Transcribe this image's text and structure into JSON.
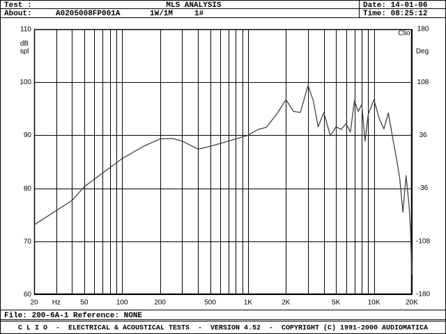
{
  "header": {
    "test_label": "Test :",
    "title": "MLS ANALYSIS",
    "date": "Date: 14-01-06",
    "about_label": "About:",
    "about_id": "A0205008FP001A",
    "about_level": "1W/1M",
    "about_num": "1#",
    "time": "Time: 08:25:12"
  },
  "chart_data": {
    "type": "line",
    "logo": "Clio",
    "y_label_lines": [
      "dB",
      "spl"
    ],
    "y2_label": "Deg",
    "x_unit_label": {
      "text": "Hz",
      "value": 30
    },
    "x": [
      20,
      40,
      50,
      100,
      150,
      200,
      250,
      300,
      400,
      500,
      700,
      1000,
      1200,
      1400,
      1700,
      2000,
      2300,
      2600,
      3000,
      3300,
      3600,
      4000,
      4500,
      5000,
      5500,
      6000,
      6500,
      7000,
      7500,
      8000,
      8500,
      9000,
      10000,
      11000,
      12000,
      13000,
      14000,
      15000,
      16000,
      17000,
      18000,
      19000,
      19500,
      20000
    ],
    "series": [
      {
        "color": "#404040",
        "values": [
          73.1,
          77.7,
          80.3,
          85.6,
          88,
          89.3,
          89.4,
          88.9,
          87.4,
          87.9,
          88.9,
          90,
          91.1,
          91.5,
          94.1,
          96.7,
          94.5,
          94.3,
          99.4,
          96.5,
          91.6,
          94.3,
          89.9,
          91.6,
          91.1,
          92.2,
          90.6,
          96.5,
          94.5,
          95.8,
          88.9,
          93.9,
          96.7,
          93.2,
          91.2,
          94.2,
          89.9,
          86,
          82,
          75.5,
          82.4,
          76.8,
          72.2,
          63.7
        ]
      }
    ],
    "xlim": [
      20,
      20000
    ],
    "xlog": true,
    "xticks": [
      20,
      50,
      100,
      200,
      500,
      {
        "value": 1000,
        "label": "1K"
      },
      {
        "value": 2000,
        "label": "2K"
      },
      {
        "value": 5000,
        "label": "5K"
      },
      {
        "value": 10000,
        "label": "10K"
      },
      {
        "value": 20000,
        "label": "20K"
      }
    ],
    "xgrid": [
      30,
      40,
      60,
      70,
      80,
      90,
      300,
      400,
      600,
      700,
      800,
      900,
      3000,
      4000,
      6000,
      7000,
      8000,
      9000
    ],
    "ylim": [
      60,
      110
    ],
    "yticks": [
      60,
      70,
      80,
      90,
      100,
      110
    ],
    "y2lim": [
      -180,
      180
    ],
    "y2ticks": [
      -180,
      -108,
      -36,
      36,
      108,
      180
    ],
    "grid": true
  },
  "footer": {
    "file": "File: 200-6A-1 Reference: NONE",
    "copyright": "C L I O  -  ELECTRICAL & ACOUSTICAL TESTS  -  VERSION 4.52  -  COPYRIGHT (C) 1991-2000 AUDIOMATICA"
  }
}
